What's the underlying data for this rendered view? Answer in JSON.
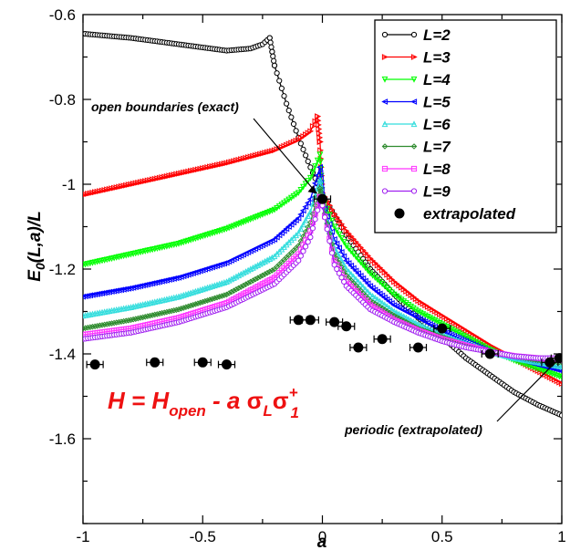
{
  "chart_data": {
    "type": "scatter",
    "xlabel": "a",
    "ylabel": "E0(L,a)/L",
    "ylabel_main": "E",
    "ylabel_sub": "0",
    "ylabel_rest": "(L,a)/L",
    "xlim": [
      -1,
      1
    ],
    "ylim": [
      -1.8,
      -0.6
    ],
    "x_ticks": [
      -1,
      -0.5,
      0,
      0.5,
      1
    ],
    "x_tick_labels": [
      "-1",
      "-0.5",
      "0",
      "0.5",
      "1"
    ],
    "y_ticks": [
      -0.6,
      -0.8,
      -1,
      -1.2,
      -1.4,
      -1.6
    ],
    "y_tick_labels": [
      "-0.6",
      "-0.8",
      "-1",
      "-1.2",
      "-1.4",
      "-1.6"
    ],
    "grid": false,
    "legend_position": "top-right",
    "series": [
      {
        "name": "L=2",
        "color": "#000000",
        "marker": "circle",
        "points": [
          [
            -1,
            -0.645
          ],
          [
            -0.8,
            -0.655
          ],
          [
            -0.6,
            -0.67
          ],
          [
            -0.4,
            -0.685
          ],
          [
            -0.3,
            -0.68
          ],
          [
            -0.25,
            -0.67
          ],
          [
            -0.22,
            -0.655
          ],
          [
            -0.2,
            -0.72
          ],
          [
            -0.15,
            -0.81
          ],
          [
            -0.1,
            -0.89
          ],
          [
            -0.05,
            -0.96
          ],
          [
            0,
            -1.025
          ],
          [
            0.1,
            -1.12
          ],
          [
            0.2,
            -1.2
          ],
          [
            0.3,
            -1.26
          ],
          [
            0.4,
            -1.315
          ],
          [
            0.5,
            -1.36
          ],
          [
            0.6,
            -1.41
          ],
          [
            0.7,
            -1.45
          ],
          [
            0.8,
            -1.49
          ],
          [
            0.9,
            -1.52
          ],
          [
            1,
            -1.545
          ]
        ]
      },
      {
        "name": "L=3",
        "color": "#ff0000",
        "marker": "triangle-right",
        "points": [
          [
            -1,
            -1.025
          ],
          [
            -0.8,
            -1.0
          ],
          [
            -0.6,
            -0.975
          ],
          [
            -0.4,
            -0.95
          ],
          [
            -0.2,
            -0.92
          ],
          [
            -0.1,
            -0.895
          ],
          [
            -0.05,
            -0.875
          ],
          [
            -0.02,
            -0.84
          ],
          [
            -0.01,
            -0.9
          ],
          [
            0,
            -1.02
          ],
          [
            0.05,
            -1.07
          ],
          [
            0.1,
            -1.11
          ],
          [
            0.2,
            -1.175
          ],
          [
            0.3,
            -1.23
          ],
          [
            0.4,
            -1.275
          ],
          [
            0.5,
            -1.31
          ],
          [
            0.6,
            -1.345
          ],
          [
            0.7,
            -1.38
          ],
          [
            0.8,
            -1.41
          ],
          [
            0.9,
            -1.44
          ],
          [
            1,
            -1.47
          ]
        ]
      },
      {
        "name": "L=4",
        "color": "#00ff00",
        "marker": "triangle-down",
        "points": [
          [
            -1,
            -1.19
          ],
          [
            -0.8,
            -1.165
          ],
          [
            -0.6,
            -1.14
          ],
          [
            -0.4,
            -1.105
          ],
          [
            -0.2,
            -1.06
          ],
          [
            -0.1,
            -1.02
          ],
          [
            -0.05,
            -0.985
          ],
          [
            -0.01,
            -0.93
          ],
          [
            0,
            -1.03
          ],
          [
            0.05,
            -1.1
          ],
          [
            0.1,
            -1.145
          ],
          [
            0.2,
            -1.21
          ],
          [
            0.3,
            -1.26
          ],
          [
            0.4,
            -1.3
          ],
          [
            0.5,
            -1.33
          ],
          [
            0.6,
            -1.36
          ],
          [
            0.7,
            -1.39
          ],
          [
            0.8,
            -1.415
          ],
          [
            0.9,
            -1.435
          ],
          [
            1,
            -1.455
          ]
        ]
      },
      {
        "name": "L=5",
        "color": "#0000ff",
        "marker": "triangle-left",
        "points": [
          [
            -1,
            -1.265
          ],
          [
            -0.8,
            -1.245
          ],
          [
            -0.6,
            -1.22
          ],
          [
            -0.4,
            -1.185
          ],
          [
            -0.2,
            -1.13
          ],
          [
            -0.1,
            -1.08
          ],
          [
            -0.05,
            -1.035
          ],
          [
            -0.01,
            -0.96
          ],
          [
            0,
            -1.04
          ],
          [
            0.05,
            -1.13
          ],
          [
            0.1,
            -1.18
          ],
          [
            0.2,
            -1.24
          ],
          [
            0.3,
            -1.285
          ],
          [
            0.4,
            -1.315
          ],
          [
            0.5,
            -1.345
          ],
          [
            0.6,
            -1.37
          ],
          [
            0.7,
            -1.395
          ],
          [
            0.8,
            -1.41
          ],
          [
            0.9,
            -1.425
          ],
          [
            1,
            -1.44
          ]
        ]
      },
      {
        "name": "L=6",
        "color": "#33dddd",
        "marker": "triangle-up",
        "points": [
          [
            -1,
            -1.31
          ],
          [
            -0.8,
            -1.29
          ],
          [
            -0.6,
            -1.265
          ],
          [
            -0.4,
            -1.23
          ],
          [
            -0.2,
            -1.17
          ],
          [
            -0.1,
            -1.115
          ],
          [
            -0.05,
            -1.065
          ],
          [
            -0.01,
            -0.99
          ],
          [
            0,
            -1.045
          ],
          [
            0.05,
            -1.15
          ],
          [
            0.1,
            -1.2
          ],
          [
            0.2,
            -1.26
          ],
          [
            0.3,
            -1.3
          ],
          [
            0.4,
            -1.33
          ],
          [
            0.5,
            -1.355
          ],
          [
            0.6,
            -1.375
          ],
          [
            0.7,
            -1.395
          ],
          [
            0.8,
            -1.41
          ],
          [
            0.9,
            -1.42
          ],
          [
            1,
            -1.43
          ]
        ]
      },
      {
        "name": "L=7",
        "color": "#2e8b2e",
        "marker": "diamond",
        "points": [
          [
            -1,
            -1.34
          ],
          [
            -0.8,
            -1.32
          ],
          [
            -0.6,
            -1.295
          ],
          [
            -0.4,
            -1.26
          ],
          [
            -0.2,
            -1.2
          ],
          [
            -0.1,
            -1.145
          ],
          [
            -0.05,
            -1.09
          ],
          [
            -0.01,
            -1.01
          ],
          [
            0,
            -1.045
          ],
          [
            0.05,
            -1.165
          ],
          [
            0.1,
            -1.215
          ],
          [
            0.2,
            -1.275
          ],
          [
            0.3,
            -1.31
          ],
          [
            0.4,
            -1.34
          ],
          [
            0.5,
            -1.36
          ],
          [
            0.6,
            -1.38
          ],
          [
            0.7,
            -1.395
          ],
          [
            0.8,
            -1.405
          ],
          [
            0.9,
            -1.415
          ],
          [
            1,
            -1.42
          ]
        ]
      },
      {
        "name": "L=8",
        "color": "#ff33ff",
        "marker": "square",
        "points": [
          [
            -1,
            -1.355
          ],
          [
            -0.8,
            -1.34
          ],
          [
            -0.6,
            -1.315
          ],
          [
            -0.4,
            -1.28
          ],
          [
            -0.2,
            -1.22
          ],
          [
            -0.1,
            -1.165
          ],
          [
            -0.05,
            -1.11
          ],
          [
            -0.01,
            -1.03
          ],
          [
            0,
            -1.05
          ],
          [
            0.05,
            -1.18
          ],
          [
            0.1,
            -1.23
          ],
          [
            0.2,
            -1.285
          ],
          [
            0.3,
            -1.32
          ],
          [
            0.4,
            -1.345
          ],
          [
            0.5,
            -1.365
          ],
          [
            0.6,
            -1.38
          ],
          [
            0.7,
            -1.395
          ],
          [
            0.8,
            -1.405
          ],
          [
            0.9,
            -1.41
          ],
          [
            1,
            -1.415
          ]
        ]
      },
      {
        "name": "L=9",
        "color": "#a020f0",
        "marker": "circle",
        "points": [
          [
            -1,
            -1.365
          ],
          [
            -0.8,
            -1.35
          ],
          [
            -0.6,
            -1.325
          ],
          [
            -0.4,
            -1.29
          ],
          [
            -0.2,
            -1.235
          ],
          [
            -0.1,
            -1.18
          ],
          [
            -0.05,
            -1.125
          ],
          [
            -0.01,
            -1.04
          ],
          [
            0,
            -1.05
          ],
          [
            0.05,
            -1.19
          ],
          [
            0.1,
            -1.24
          ],
          [
            0.2,
            -1.295
          ],
          [
            0.3,
            -1.325
          ],
          [
            0.4,
            -1.35
          ],
          [
            0.5,
            -1.37
          ],
          [
            0.6,
            -1.385
          ],
          [
            0.7,
            -1.395
          ],
          [
            0.8,
            -1.405
          ],
          [
            0.9,
            -1.41
          ],
          [
            1,
            -1.41
          ]
        ]
      },
      {
        "name": "extrapolated",
        "color": "#000000",
        "marker": "filled-circle-errorbar",
        "points": [
          [
            -0.95,
            -1.425
          ],
          [
            -0.7,
            -1.42
          ],
          [
            -0.5,
            -1.42
          ],
          [
            -0.4,
            -1.425
          ],
          [
            -0.1,
            -1.32
          ],
          [
            -0.05,
            -1.32
          ],
          [
            0,
            -1.035
          ],
          [
            0.05,
            -1.325
          ],
          [
            0.1,
            -1.335
          ],
          [
            0.15,
            -1.385
          ],
          [
            0.25,
            -1.365
          ],
          [
            0.4,
            -1.385
          ],
          [
            0.5,
            -1.34
          ],
          [
            0.7,
            -1.4
          ],
          [
            0.95,
            -1.42
          ],
          [
            0.99,
            -1.41
          ]
        ]
      }
    ],
    "annotations": [
      {
        "text": "open boundaries (exact)",
        "target": [
          0,
          -1.035
        ]
      },
      {
        "text": "periodic (extrapolated)",
        "target": [
          0.99,
          -1.41
        ]
      }
    ],
    "formula": {
      "H": "H = H",
      "open_sub": "open",
      "minus_a": " - a ",
      "sigma_L": "σ",
      "sigma_L_sub": "L",
      "sigma_1": "σ",
      "sigma_1_sup": "+",
      "sigma_1_sub": "1"
    }
  }
}
